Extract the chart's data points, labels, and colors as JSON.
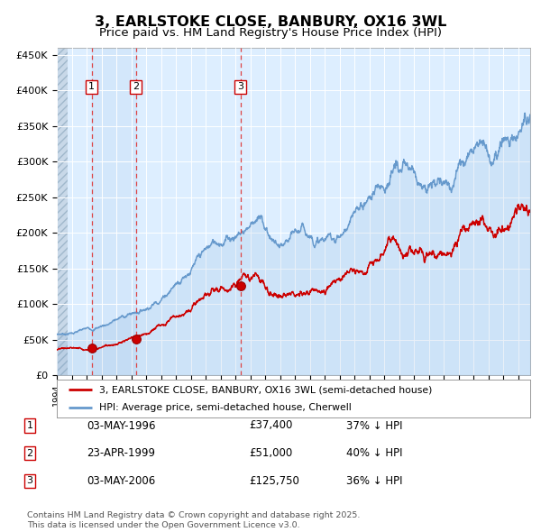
{
  "title": "3, EARLSTOKE CLOSE, BANBURY, OX16 3WL",
  "subtitle": "Price paid vs. HM Land Registry's House Price Index (HPI)",
  "ylim": [
    0,
    460000
  ],
  "yticks": [
    0,
    50000,
    100000,
    150000,
    200000,
    250000,
    300000,
    350000,
    400000,
    450000
  ],
  "ytick_labels": [
    "£0",
    "£50K",
    "£100K",
    "£150K",
    "£200K",
    "£250K",
    "£300K",
    "£350K",
    "£400K",
    "£450K"
  ],
  "plot_bg_color": "#ddeeff",
  "grid_color": "#ffffff",
  "red_line_color": "#cc0000",
  "blue_line_color": "#6699cc",
  "vline_color": "#dd4444",
  "title_fontsize": 11.5,
  "subtitle_fontsize": 9.5,
  "sale_points": [
    {
      "price": 37400,
      "label": "1",
      "x_year": 1996.34
    },
    {
      "price": 51000,
      "label": "2",
      "x_year": 1999.31
    },
    {
      "price": 125750,
      "label": "3",
      "x_year": 2006.34
    }
  ],
  "legend_line1": "3, EARLSTOKE CLOSE, BANBURY, OX16 3WL (semi-detached house)",
  "legend_line2": "HPI: Average price, semi-detached house, Cherwell",
  "table_data": [
    {
      "num": "1",
      "date": "03-MAY-1996",
      "price": "£37,400",
      "hpi": "37% ↓ HPI"
    },
    {
      "num": "2",
      "date": "23-APR-1999",
      "price": "£51,000",
      "hpi": "40% ↓ HPI"
    },
    {
      "num": "3",
      "date": "03-MAY-2006",
      "price": "£125,750",
      "hpi": "36% ↓ HPI"
    }
  ],
  "footnote": "Contains HM Land Registry data © Crown copyright and database right 2025.\nThis data is licensed under the Open Government Licence v3.0.",
  "xmin": 1994.0,
  "xmax": 2025.8
}
